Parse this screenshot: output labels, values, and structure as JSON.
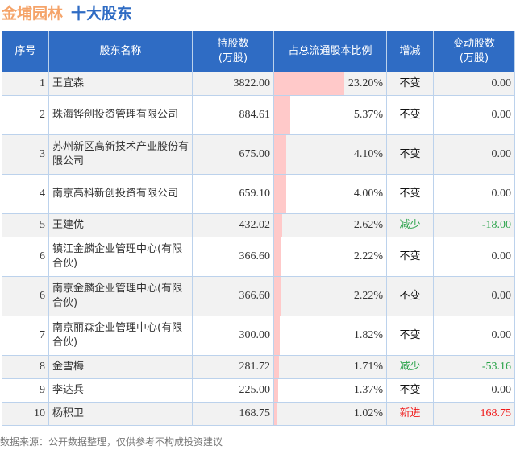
{
  "title": {
    "company": "金埔园林",
    "subtitle": "十大股东"
  },
  "headers": [
    "序号",
    "股东名称",
    "持股数\n(万股)",
    "占总流通股本比例",
    "增减",
    "变动股数\n(万股)"
  ],
  "rows": [
    {
      "rank": "1",
      "name": "王宜森",
      "shares": "3822.00",
      "pct": "23.20%",
      "pct_value": 23.2,
      "change": "不变",
      "delta": "0.00",
      "dir": "same"
    },
    {
      "rank": "2",
      "name": "珠海铧创投资管理有限公司",
      "shares": "884.61",
      "pct": "5.37%",
      "pct_value": 5.37,
      "change": "不变",
      "delta": "0.00",
      "dir": "same"
    },
    {
      "rank": "3",
      "name": "苏州新区高新技术产业股份有限公司",
      "shares": "675.00",
      "pct": "4.10%",
      "pct_value": 4.1,
      "change": "不变",
      "delta": "0.00",
      "dir": "same"
    },
    {
      "rank": "4",
      "name": "南京高科新创投资有限公司",
      "shares": "659.10",
      "pct": "4.00%",
      "pct_value": 4.0,
      "change": "不变",
      "delta": "0.00",
      "dir": "same"
    },
    {
      "rank": "5",
      "name": "王建优",
      "shares": "432.02",
      "pct": "2.62%",
      "pct_value": 2.62,
      "change": "减少",
      "delta": "-18.00",
      "dir": "down"
    },
    {
      "rank": "6",
      "name": "镇江金麟企业管理中心(有限合伙)",
      "shares": "366.60",
      "pct": "2.22%",
      "pct_value": 2.22,
      "change": "不变",
      "delta": "0.00",
      "dir": "same"
    },
    {
      "rank": "6",
      "name": "南京金麟企业管理中心(有限合伙)",
      "shares": "366.60",
      "pct": "2.22%",
      "pct_value": 2.22,
      "change": "不变",
      "delta": "0.00",
      "dir": "same"
    },
    {
      "rank": "7",
      "name": "南京丽森企业管理中心(有限合伙)",
      "shares": "300.00",
      "pct": "1.82%",
      "pct_value": 1.82,
      "change": "不变",
      "delta": "0.00",
      "dir": "same"
    },
    {
      "rank": "8",
      "name": "金雪梅",
      "shares": "281.72",
      "pct": "1.71%",
      "pct_value": 1.71,
      "change": "减少",
      "delta": "-53.16",
      "dir": "down"
    },
    {
      "rank": "9",
      "name": "李达兵",
      "shares": "225.00",
      "pct": "1.37%",
      "pct_value": 1.37,
      "change": "不变",
      "delta": "0.00",
      "dir": "same"
    },
    {
      "rank": "10",
      "name": "杨积卫",
      "shares": "168.75",
      "pct": "1.02%",
      "pct_value": 1.02,
      "change": "新进",
      "delta": "168.75",
      "dir": "up"
    }
  ],
  "footer": "数据来源：公开数据整理，仅供参考不构成投资建议",
  "colors": {
    "header": "#2f6cc4",
    "bar": "#ffc9c9",
    "down": "#2aa34a",
    "up": "#f01818"
  }
}
